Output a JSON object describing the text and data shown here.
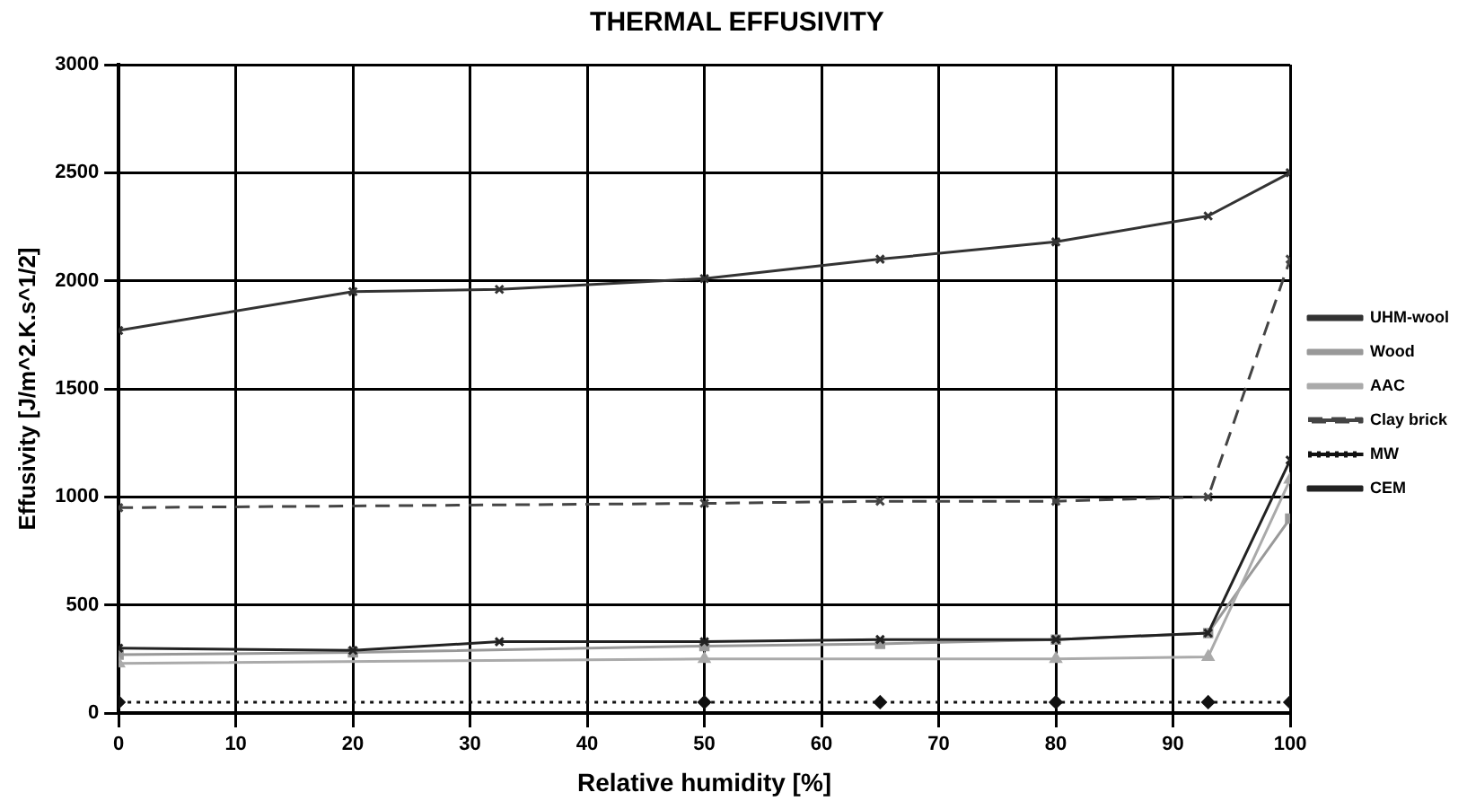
{
  "chart_data": {
    "type": "line",
    "title": "THERMAL EFFUSIVITY",
    "xlabel": "Relative humidity [%]",
    "ylabel": "Effusivity [J/m^2.K.s^1/2]",
    "xlim": [
      0,
      100
    ],
    "xticks": [
      0,
      10,
      20,
      30,
      40,
      50,
      60,
      70,
      80,
      90,
      100
    ],
    "ylim": [
      0,
      3000
    ],
    "yticks": [
      0,
      500,
      1000,
      1500,
      2000,
      2500,
      3000
    ],
    "grid": true,
    "legend": "right",
    "series": [
      {
        "name": "UHM-wool",
        "color": "#333333",
        "marker": "cross",
        "line_style": "solid",
        "x": [
          0,
          20,
          32.5,
          50,
          65,
          80,
          93,
          100
        ],
        "values": [
          1770,
          1950,
          1960,
          2010,
          2100,
          2180,
          2300,
          2500
        ]
      },
      {
        "name": "Wood",
        "color": "#999999",
        "marker": "square",
        "line_style": "solid",
        "x": [
          0,
          20,
          50,
          65,
          80,
          93,
          100
        ],
        "values": [
          270,
          280,
          310,
          320,
          340,
          370,
          900
        ]
      },
      {
        "name": "AAC",
        "color": "#aaaaaa",
        "marker": "triangle",
        "line_style": "solid",
        "x": [
          0,
          50,
          80,
          93,
          100
        ],
        "values": [
          230,
          250,
          250,
          260,
          1080
        ]
      },
      {
        "name": "Clay brick",
        "color": "#444444",
        "marker": "cross",
        "line_style": "dashed",
        "x": [
          0,
          50,
          65,
          80,
          93,
          100
        ],
        "values": [
          950,
          970,
          980,
          980,
          1000,
          2100
        ]
      },
      {
        "name": "MW",
        "color": "#111111",
        "marker": "diamond",
        "line_style": "dotted",
        "x": [
          0,
          50,
          65,
          80,
          93,
          100
        ],
        "values": [
          50,
          50,
          50,
          50,
          50,
          50
        ]
      },
      {
        "name": "CEM",
        "color": "#222222",
        "marker": "cross",
        "line_style": "solid",
        "x": [
          0,
          20,
          32.5,
          50,
          65,
          80,
          93,
          100
        ],
        "values": [
          300,
          290,
          330,
          330,
          340,
          340,
          370,
          1170
        ]
      }
    ]
  }
}
